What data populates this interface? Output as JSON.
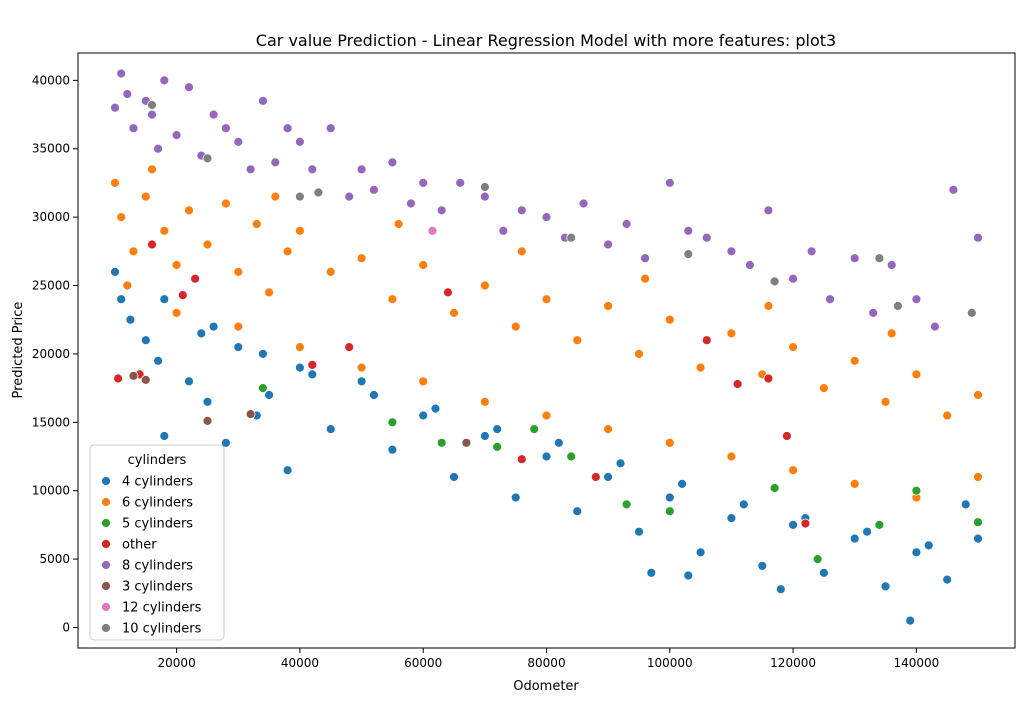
{
  "chart_data": {
    "type": "scatter",
    "title": "Car value Prediction - Linear Regression Model with more features: plot3",
    "xlabel": "Odometer",
    "ylabel": "Predicted Price",
    "xlim": [
      4000,
      156000
    ],
    "ylim": [
      -1500,
      42000
    ],
    "x_ticks": [
      20000,
      40000,
      60000,
      80000,
      100000,
      120000,
      140000
    ],
    "y_ticks": [
      0,
      5000,
      10000,
      15000,
      20000,
      25000,
      30000,
      35000,
      40000
    ],
    "grid": false,
    "legend": {
      "title": "cylinders",
      "placement": "lower-left",
      "entries": [
        "4 cylinders",
        "6 cylinders",
        "5 cylinders",
        "other",
        "8 cylinders",
        "3 cylinders",
        "12 cylinders",
        "10 cylinders"
      ]
    },
    "series": [
      {
        "name": "4 cylinders",
        "color": "#1f77b4",
        "x": [
          10000,
          11000,
          12500,
          15000,
          17000,
          18000,
          20000,
          22000,
          24000,
          25000,
          28000,
          30000,
          33000,
          35000,
          38000,
          40000,
          45000,
          50000,
          55000,
          60000,
          65000,
          70000,
          75000,
          80000,
          85000,
          90000,
          95000,
          100000,
          105000,
          110000,
          115000,
          120000,
          125000,
          130000,
          135000,
          140000,
          145000,
          150000,
          12000,
          18000,
          26000,
          34000,
          42000,
          52000,
          62000,
          72000,
          82000,
          92000,
          102000,
          112000,
          122000,
          132000,
          142000,
          148000,
          97000,
          103000,
          118000,
          139000
        ],
        "y": [
          26000,
          24000,
          22500,
          21000,
          19500,
          14000,
          23000,
          18000,
          21500,
          16500,
          13500,
          20500,
          15500,
          17000,
          11500,
          19000,
          14500,
          18000,
          13000,
          15500,
          11000,
          14000,
          9500,
          12500,
          8500,
          11000,
          7000,
          9500,
          5500,
          8000,
          4500,
          7500,
          4000,
          6500,
          3000,
          5500,
          3500,
          6500,
          25000,
          24000,
          22000,
          20000,
          18500,
          17000,
          16000,
          14500,
          13500,
          12000,
          10500,
          9000,
          8000,
          7000,
          6000,
          9000,
          4000,
          3800,
          2800,
          500
        ]
      },
      {
        "name": "6 cylinders",
        "color": "#ff7f0e",
        "x": [
          10000,
          11000,
          13000,
          15000,
          18000,
          20000,
          22000,
          25000,
          28000,
          30000,
          33000,
          35000,
          38000,
          40000,
          45000,
          50000,
          55000,
          60000,
          65000,
          70000,
          75000,
          80000,
          85000,
          90000,
          95000,
          100000,
          105000,
          110000,
          115000,
          120000,
          125000,
          130000,
          135000,
          140000,
          145000,
          150000,
          12000,
          20000,
          30000,
          40000,
          50000,
          60000,
          70000,
          80000,
          90000,
          100000,
          110000,
          120000,
          130000,
          140000,
          150000,
          16000,
          36000,
          56000,
          76000,
          96000,
          116000,
          136000
        ],
        "y": [
          32500,
          30000,
          27500,
          31500,
          29000,
          26500,
          30500,
          28000,
          31000,
          26000,
          29500,
          24500,
          27500,
          29000,
          26000,
          27000,
          24000,
          26500,
          23000,
          25000,
          22000,
          24000,
          21000,
          23500,
          20000,
          22500,
          19000,
          21500,
          18500,
          20500,
          17500,
          19500,
          16500,
          18500,
          15500,
          17000,
          25000,
          23000,
          22000,
          20500,
          19000,
          18000,
          16500,
          15500,
          14500,
          13500,
          12500,
          11500,
          10500,
          9500,
          11000,
          33500,
          31500,
          29500,
          27500,
          25500,
          23500,
          21500
        ]
      },
      {
        "name": "5 cylinders",
        "color": "#2ca02c",
        "x": [
          34000,
          55000,
          63000,
          72000,
          78000,
          84000,
          93000,
          100000,
          117000,
          124000,
          134000,
          140000,
          150000
        ],
        "y": [
          17500,
          15000,
          13500,
          13200,
          14500,
          12500,
          9000,
          8500,
          10200,
          5000,
          7500,
          10000,
          7700
        ]
      },
      {
        "name": "other",
        "color": "#d62728",
        "x": [
          10500,
          14000,
          16000,
          21000,
          23000,
          42000,
          48000,
          64000,
          76000,
          88000,
          106000,
          111000,
          116000,
          119000,
          122000
        ],
        "y": [
          18200,
          18500,
          28000,
          24300,
          25500,
          19200,
          20500,
          24500,
          12300,
          11000,
          21000,
          17800,
          18200,
          14000,
          7600
        ]
      },
      {
        "name": "8 cylinders",
        "color": "#9467bd",
        "x": [
          10000,
          11000,
          12000,
          13000,
          15000,
          16000,
          17000,
          18000,
          20000,
          22000,
          24000,
          26000,
          28000,
          30000,
          32000,
          34000,
          36000,
          38000,
          40000,
          42000,
          45000,
          48000,
          50000,
          52000,
          55000,
          58000,
          60000,
          63000,
          66000,
          70000,
          73000,
          76000,
          80000,
          83000,
          86000,
          90000,
          93000,
          96000,
          100000,
          103000,
          106000,
          110000,
          113000,
          116000,
          120000,
          123000,
          126000,
          130000,
          133000,
          136000,
          140000,
          143000,
          146000,
          150000
        ],
        "y": [
          38000,
          40500,
          39000,
          36500,
          38500,
          37500,
          35000,
          40000,
          36000,
          39500,
          34500,
          37500,
          36500,
          35500,
          33500,
          38500,
          34000,
          36500,
          35500,
          33500,
          36500,
          31500,
          33500,
          32000,
          34000,
          31000,
          32500,
          30500,
          32500,
          31500,
          29000,
          30500,
          30000,
          28500,
          31000,
          28000,
          29500,
          27000,
          32500,
          29000,
          28500,
          27500,
          26500,
          30500,
          25500,
          27500,
          24000,
          27000,
          23000,
          26500,
          24000,
          22000,
          32000,
          28500
        ]
      },
      {
        "name": "3 cylinders",
        "color": "#8c564b",
        "x": [
          13000,
          15000,
          25000,
          32000,
          67000
        ],
        "y": [
          18400,
          18100,
          15100,
          15600,
          13500
        ]
      },
      {
        "name": "12 cylinders",
        "color": "#e377c2",
        "x": [
          61500
        ],
        "y": [
          29000
        ]
      },
      {
        "name": "10 cylinders",
        "color": "#7f7f7f",
        "x": [
          16000,
          25000,
          40000,
          43000,
          70000,
          84000,
          103000,
          117000,
          134000,
          137000,
          149000
        ],
        "y": [
          38200,
          34300,
          31500,
          31800,
          32200,
          28500,
          27300,
          25300,
          27000,
          23500,
          23000
        ]
      }
    ]
  }
}
